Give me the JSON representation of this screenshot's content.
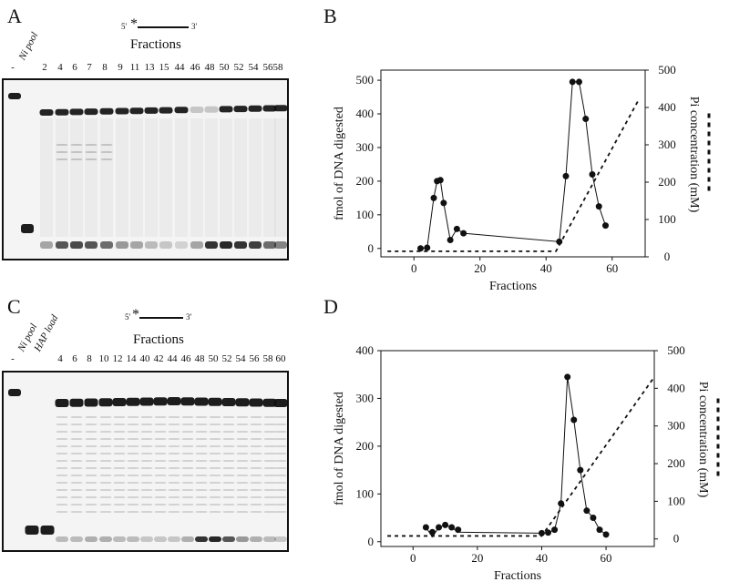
{
  "panels": {
    "a": {
      "letter": "A",
      "substrate": {
        "left": "5'",
        "right": "3'"
      },
      "fractions_title": "Fractions",
      "lane_labels": [
        "-",
        "Ni pool",
        "2",
        "4",
        "6",
        "7",
        "8",
        "9",
        "11",
        "13",
        "15",
        "44",
        "46",
        "48",
        "50",
        "52",
        "54",
        "56",
        "58"
      ]
    },
    "b": {
      "letter": "B"
    },
    "c": {
      "letter": "C",
      "substrate": {
        "left": "5'",
        "right": "3'"
      },
      "fractions_title": "Fractions",
      "lane_labels": [
        "-",
        "Ni pool",
        "HAP load",
        "4",
        "6",
        "8",
        "10",
        "12",
        "14",
        "40",
        "42",
        "44",
        "46",
        "48",
        "50",
        "52",
        "54",
        "56",
        "58",
        "60"
      ]
    },
    "d": {
      "letter": "D"
    }
  },
  "chart_data": [
    {
      "panel": "B",
      "type": "line",
      "xlabel": "Fractions",
      "ylabel": "fmol of DNA digested",
      "y2label": "Pi concentration (mM)",
      "xlim": [
        -10,
        70
      ],
      "ylim": [
        -25,
        530
      ],
      "y2lim": [
        0,
        500
      ],
      "xticks": [
        0,
        20,
        40,
        60
      ],
      "yticks": [
        0,
        100,
        200,
        300,
        400,
        500
      ],
      "y2ticks": [
        0,
        100,
        200,
        300,
        400,
        500
      ],
      "series": [
        {
          "style": "solid-markers",
          "x": [
            2,
            4,
            6,
            7,
            8,
            9,
            11,
            13,
            15,
            44,
            46,
            48,
            50,
            52,
            54,
            56,
            58
          ],
          "y": [
            0,
            2,
            150,
            200,
            203,
            135,
            25,
            58,
            45,
            20,
            215,
            495,
            495,
            385,
            220,
            125,
            68
          ]
        },
        {
          "axis": "right",
          "style": "dashed",
          "x": [
            -8,
            43,
            68
          ],
          "y": [
            15,
            15,
            420
          ]
        }
      ]
    },
    {
      "panel": "D",
      "type": "line",
      "xlabel": "Fractions",
      "ylabel": "fmol of DNA digested",
      "y2label": "Pi concentration (mM)",
      "xlim": [
        -10,
        75
      ],
      "ylim": [
        -10,
        400
      ],
      "y2lim": [
        -20,
        500
      ],
      "xticks": [
        0,
        20,
        40,
        60
      ],
      "yticks": [
        0,
        100,
        200,
        300,
        400
      ],
      "y2ticks": [
        0,
        100,
        200,
        300,
        400,
        500
      ],
      "series": [
        {
          "style": "solid-markers",
          "x": [
            4,
            6,
            8,
            10,
            12,
            14,
            40,
            42,
            44,
            46,
            48,
            50,
            52,
            54,
            56,
            58,
            60
          ],
          "y": [
            30,
            20,
            30,
            35,
            30,
            25,
            18,
            19,
            25,
            80,
            345,
            255,
            150,
            65,
            50,
            25,
            15
          ],
          "line_x": [
            4,
            6,
            8,
            10,
            12,
            14,
            40,
            42,
            44,
            46,
            48,
            50,
            52,
            54,
            56,
            58,
            60
          ],
          "line_y": [
            30,
            10,
            30,
            35,
            30,
            20,
            18,
            19,
            25,
            80,
            345,
            255,
            150,
            65,
            50,
            25,
            15
          ]
        },
        {
          "axis": "right",
          "style": "dashed",
          "x": [
            -8,
            40,
            75
          ],
          "y": [
            8,
            8,
            430
          ]
        }
      ]
    }
  ]
}
